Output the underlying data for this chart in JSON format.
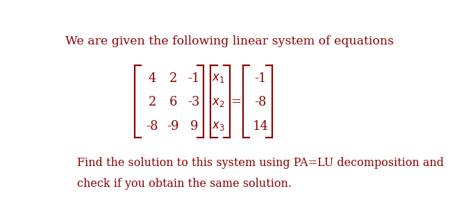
{
  "title_text": "We are given the following linear system of equations",
  "matrix_A": [
    [
      "4",
      "2",
      "-1"
    ],
    [
      "2",
      "6",
      "-3"
    ],
    [
      "-8",
      "-9",
      "9"
    ]
  ],
  "vector_x": [
    "x_1",
    "x_2",
    "x_3"
  ],
  "vector_b": [
    "-1",
    "-8",
    "14"
  ],
  "bottom_text_line1": "Find the solution to this system using PA=LU decomposition and",
  "bottom_text_line2": "check if you obtain the same solution.",
  "text_color": "#8B0000",
  "bg_color": "#ffffff",
  "font_size_title": 12.5,
  "font_size_body": 11.5,
  "font_size_matrix": 13
}
